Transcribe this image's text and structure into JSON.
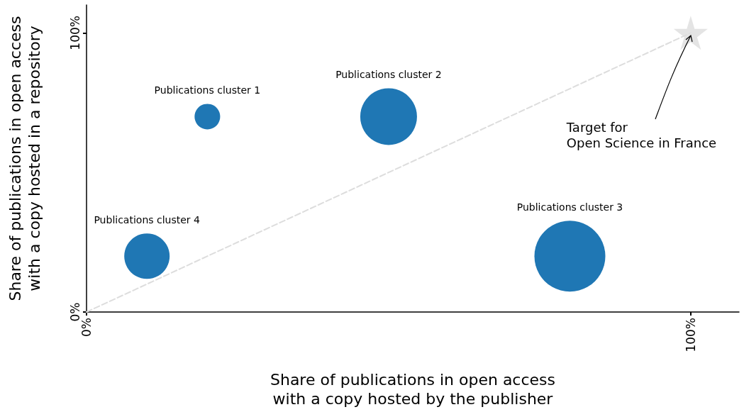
{
  "chart_data": {
    "type": "bubble",
    "xlabel": "Share of publications in open access\nwith a copy hosted by the publisher",
    "ylabel": "Share of publications in open access\nwith a copy hosted in a repository",
    "xlim": [
      0,
      108
    ],
    "ylim": [
      0,
      110
    ],
    "xticks": [
      {
        "value": 0,
        "label": "0%"
      },
      {
        "value": 100,
        "label": "100%"
      }
    ],
    "yticks": [
      {
        "value": 0,
        "label": "0%"
      },
      {
        "value": 100,
        "label": "100%"
      }
    ],
    "grid": false,
    "legend": false,
    "series": [
      {
        "type": "line",
        "color": "#dddddd",
        "line_style": "dashed",
        "marker": "none",
        "x": [
          0,
          100
        ],
        "values": [
          0,
          100
        ]
      },
      {
        "type": "scatter",
        "color": "#dddddd",
        "marker": "star",
        "x": [
          100
        ],
        "values": [
          100
        ]
      },
      {
        "name": "Publications cluster 1",
        "color": "#1f77b4",
        "x": [
          20
        ],
        "values": [
          70
        ],
        "sizes": [
          0.13
        ]
      },
      {
        "name": "Publications cluster 2",
        "color": "#1f77b4",
        "x": [
          50
        ],
        "values": [
          70
        ],
        "sizes": [
          0.64
        ]
      },
      {
        "name": "Publications cluster 3",
        "color": "#1f77b4",
        "x": [
          80
        ],
        "values": [
          20
        ],
        "sizes": [
          1
        ]
      },
      {
        "name": "Publications cluster 4",
        "color": "#1f77b4",
        "x": [
          10
        ],
        "values": [
          20
        ],
        "sizes": [
          0.41
        ]
      }
    ],
    "annotations": [
      {
        "text": "Target for\nOpen Science in France",
        "x": 100,
        "y": 100
      }
    ]
  }
}
